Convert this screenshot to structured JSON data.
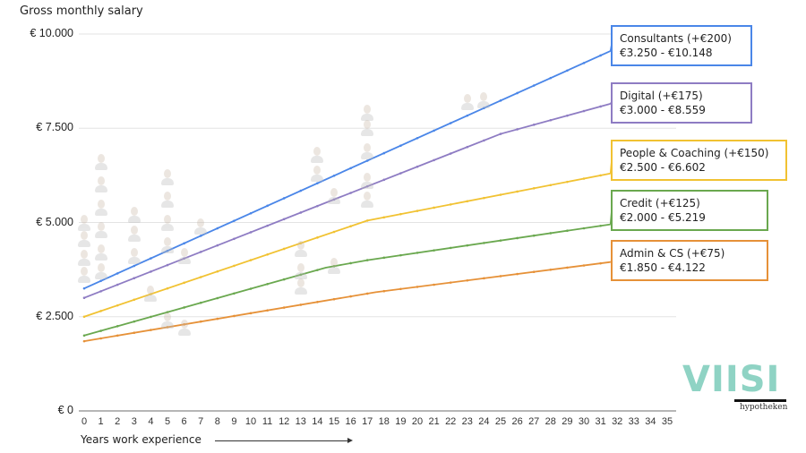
{
  "chart_data": {
    "type": "line",
    "title": "Gross monthly salary",
    "xlabel": "Years work experience",
    "ylabel": "Gross monthly salary",
    "xlim": [
      0,
      35
    ],
    "ylim": [
      0,
      10000
    ],
    "x_ticks": [
      0,
      1,
      2,
      3,
      4,
      5,
      6,
      7,
      8,
      9,
      10,
      11,
      12,
      13,
      14,
      15,
      16,
      17,
      18,
      19,
      20,
      21,
      22,
      23,
      24,
      25,
      26,
      27,
      28,
      29,
      30,
      31,
      32,
      33,
      34,
      35
    ],
    "y_ticks": [
      {
        "value": 0,
        "label": "€ 0"
      },
      {
        "value": 2500,
        "label": "€ 2.500"
      },
      {
        "value": 5000,
        "label": "€ 5.000"
      },
      {
        "value": 7500,
        "label": "€ 7.500"
      },
      {
        "value": 10000,
        "label": "€ 10.000"
      }
    ],
    "grid": true,
    "series": [
      {
        "name": "Consultants",
        "increment": "+€200",
        "range": "€3.250 - €10.148",
        "color": "#4a86e8",
        "points": [
          [
            0,
            3250
          ],
          [
            31.6,
            9550
          ]
        ]
      },
      {
        "name": "Digital",
        "increment": "+€175",
        "range": "€3.000 - €8.559",
        "color": "#8e7cc3",
        "points": [
          [
            0,
            3000
          ],
          [
            25,
            7350
          ],
          [
            31.6,
            8150
          ]
        ]
      },
      {
        "name": "People & Coaching",
        "increment": "+€150",
        "range": "€2.500 - €6.602",
        "color": "#f1c232",
        "points": [
          [
            0,
            2500
          ],
          [
            17,
            5050
          ],
          [
            31.6,
            6300
          ]
        ]
      },
      {
        "name": "Credit",
        "increment": "+€125",
        "range": "€2.000 - €5.219",
        "color": "#6aa84f",
        "points": [
          [
            0,
            2000
          ],
          [
            14.5,
            3800
          ],
          [
            17,
            4000
          ],
          [
            31.6,
            4950
          ]
        ]
      },
      {
        "name": "Admin & CS",
        "increment": "+€75",
        "range": "€1.850 - €4.122",
        "color": "#e69138",
        "points": [
          [
            0,
            1850
          ],
          [
            17.5,
            3150
          ],
          [
            31.6,
            3950
          ]
        ]
      }
    ],
    "annotations": [
      "Employee photos scattered as data points across the chart"
    ]
  },
  "labels": [
    {
      "title": "Consultants (+€200)",
      "range": "€3.250 - €10.148"
    },
    {
      "title": "Digital (+€175)",
      "range": "€3.000 - €8.559"
    },
    {
      "title": "People & Coaching (+€150)",
      "range": "€2.500 - €6.602"
    },
    {
      "title": "Credit (+€125)",
      "range": "€2.000 - €5.219"
    },
    {
      "title": "Admin & CS (+€75)",
      "range": "€1.850 - €4.122"
    }
  ],
  "logo": {
    "name": "VIISI",
    "sub": "hypotheken"
  }
}
